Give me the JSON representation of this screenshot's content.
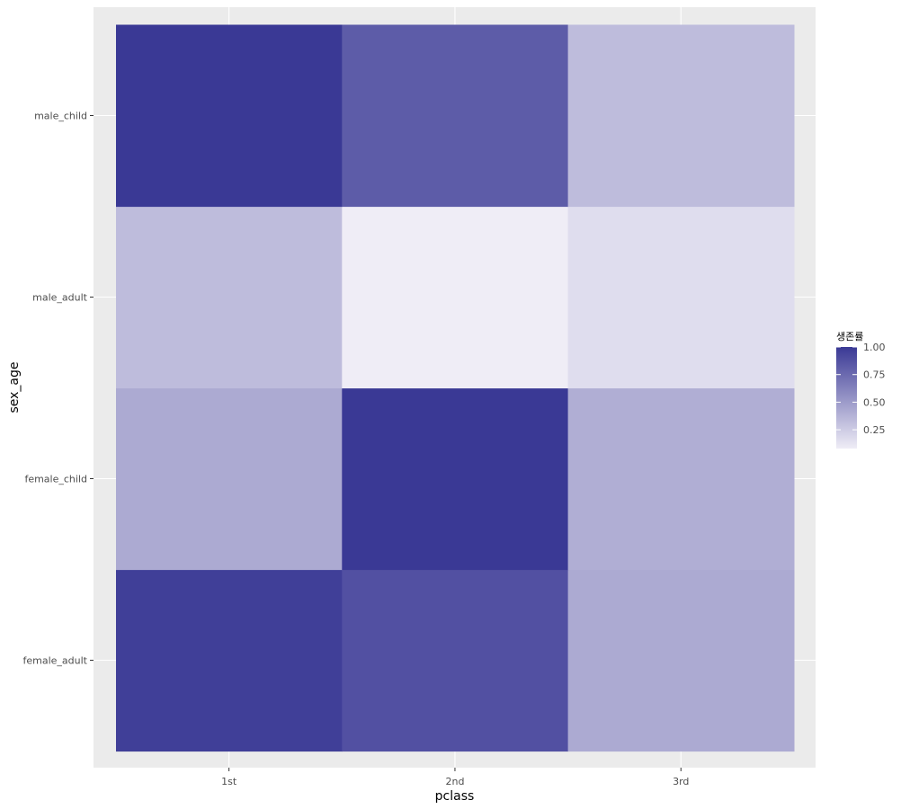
{
  "chart_data": {
    "type": "heatmap",
    "title": "",
    "xlabel": "pclass",
    "ylabel": "sex_age",
    "x_categories": [
      "1st",
      "2nd",
      "3rd"
    ],
    "y_categories": [
      "female_adult",
      "female_child",
      "male_adult",
      "male_child"
    ],
    "values": [
      [
        0.97,
        0.88,
        0.42
      ],
      [
        0.42,
        1.0,
        0.4
      ],
      [
        0.33,
        0.08,
        0.16
      ],
      [
        1.0,
        0.82,
        0.33
      ]
    ],
    "colorbar": {
      "title": "생존률",
      "range": [
        0.08,
        1.0
      ],
      "low_color": "#EFEDF6",
      "high_color": "#3A3995",
      "ticks": [
        0.25,
        0.5,
        0.75,
        1.0
      ],
      "tick_labels": [
        "0.25",
        "0.50",
        "0.75",
        "1.00"
      ]
    },
    "panel_background": "#EBEBEB",
    "gridline_color": "#FFFFFF",
    "grid": true,
    "legend_position": "right"
  }
}
